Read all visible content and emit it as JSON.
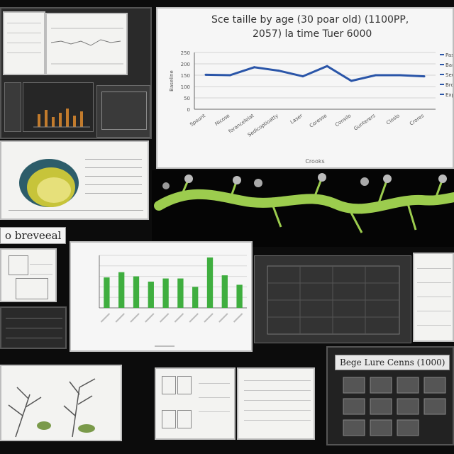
{
  "main_chart": {
    "title_line1": "Sce taille by age (30 poar old) (1100PP,",
    "title_line2": "2057) la time Tuer 6000",
    "ylabel": "Baseline",
    "xlabel": "Crooks",
    "legend": [
      "Paseta",
      "Baras",
      "Seus",
      "Broons",
      "Exps"
    ],
    "y_ticks": [
      "250",
      "200",
      "150",
      "100",
      "50",
      "0"
    ],
    "x_ticks": [
      "Spount",
      "Nicose",
      "forancelelat",
      "Sedicoptioatty",
      "Laser",
      "Coresse",
      "Consilo",
      "Gunterers",
      "Closlo",
      "Crores"
    ]
  },
  "chart_data": [
    {
      "type": "line",
      "title": "Sce taille by age (30 poar old) (1100PP, 2057) la time Tuer 6000",
      "xlabel": "Crooks",
      "ylabel": "Baseline",
      "categories": [
        "Spount",
        "Nicose",
        "forancelelat",
        "Sedicoptioatty",
        "Laser",
        "Coresse",
        "Consilo",
        "Gunterers",
        "Closlo",
        "Crores"
      ],
      "values": [
        152,
        150,
        185,
        170,
        145,
        190,
        125,
        150,
        150,
        145
      ],
      "ylim": [
        0,
        250
      ],
      "grid": true,
      "legend_position": "right"
    },
    {
      "type": "bar",
      "categories": [
        "1",
        "2",
        "3",
        "4",
        "5",
        "6",
        "7",
        "8",
        "9",
        "10"
      ],
      "values": [
        58,
        68,
        60,
        50,
        56,
        56,
        40,
        96,
        62,
        44
      ],
      "ylim": [
        0,
        100
      ],
      "grid": true,
      "color": "#3fae3f"
    }
  ],
  "labels": {
    "biography": "o breveeal",
    "bottom_right_title": "Bege Lure Cenns (1000)"
  },
  "colors": {
    "line": "#2a55a8",
    "bars": "#3fae3f",
    "plant": "#9ccc4e"
  },
  "icons": [
    "magnifier-icon",
    "botanical-sketch-icon",
    "plant-stem-icon"
  ]
}
